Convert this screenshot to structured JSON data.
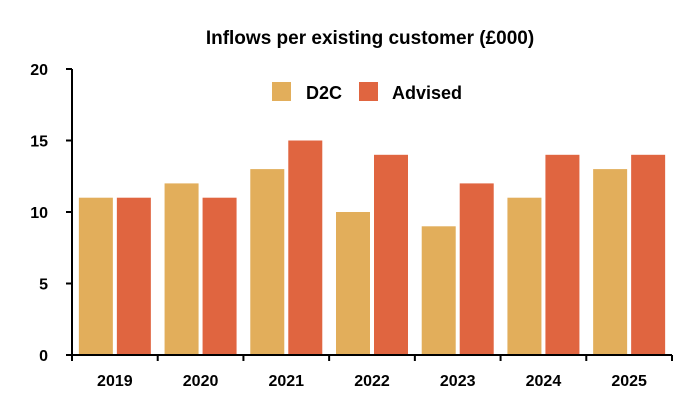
{
  "chart_data": {
    "type": "bar",
    "title": "Inflows per existing customer (£000)",
    "xlabel": "",
    "ylabel": "",
    "categories": [
      "2019",
      "2020",
      "2021",
      "2022",
      "2023",
      "2024",
      "2025"
    ],
    "series": [
      {
        "name": "D2C",
        "color": "#E2AE5B",
        "values": [
          11,
          12,
          13,
          10,
          9,
          11,
          13
        ]
      },
      {
        "name": "Advised",
        "color": "#E06540",
        "values": [
          11,
          11,
          15,
          14,
          12,
          14,
          14
        ]
      }
    ],
    "ylim": [
      0,
      20
    ],
    "yticks": [
      0,
      5,
      10,
      15,
      20
    ],
    "grid": false,
    "legend_position": "top-center"
  }
}
